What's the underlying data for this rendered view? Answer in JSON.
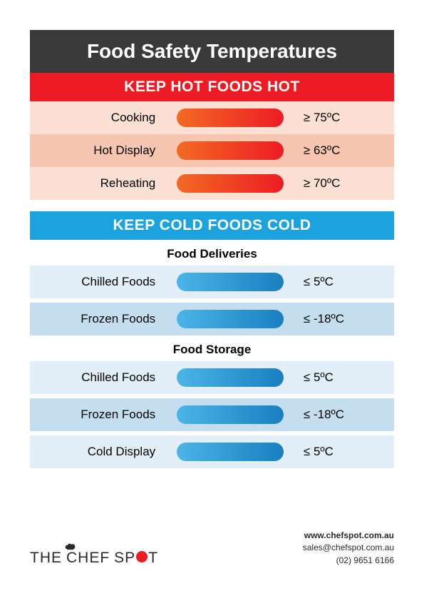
{
  "title": "Food Safety Temperatures",
  "hot": {
    "header": "KEEP HOT FOODS HOT",
    "header_bg": "#ed1c24",
    "row_bg_alt": [
      "#fbe0d3",
      "#f7c6b0"
    ],
    "label_color": "#2a2a2a",
    "pill_gradient": [
      "#f26a23",
      "#ed1c24"
    ],
    "rows": [
      {
        "label": "Cooking",
        "temp": "≥ 75ºC"
      },
      {
        "label": "Hot Display",
        "temp": "≥ 63ºC"
      },
      {
        "label": "Reheating",
        "temp": "≥ 70ºC"
      }
    ]
  },
  "cold": {
    "header": "KEEP COLD FOODS COLD",
    "header_bg": "#1ca3dd",
    "row_bg_alt": [
      "#e3eff8",
      "#c4def0"
    ],
    "label_color": "#2a2a2a",
    "pill_gradient": [
      "#4cb4e7",
      "#1a7fc1"
    ],
    "sections": [
      {
        "title": "Food Deliveries",
        "rows": [
          {
            "label": "Chilled Foods",
            "temp": "≤ 5ºC"
          },
          {
            "label": "Frozen Foods",
            "temp": "≤ -18ºC"
          }
        ]
      },
      {
        "title": "Food Storage",
        "rows": [
          {
            "label": "Chilled Foods",
            "temp": "≤ 5ºC"
          },
          {
            "label": "Frozen Foods",
            "temp": "≤ -18ºC"
          },
          {
            "label": "Cold Display",
            "temp": "≤ 5ºC"
          }
        ]
      }
    ]
  },
  "footer": {
    "logo_the": "THE",
    "logo_chef": "CHEF",
    "logo_sp": "SP",
    "logo_t": "T",
    "website": "www.chefspot.com.au",
    "email": "sales@chefspot.com.au",
    "phone": "(02) 9651 6166"
  },
  "style": {
    "title_bg": "#3a3a3a",
    "title_color": "#ffffff",
    "page_bg": "#ffffff"
  }
}
